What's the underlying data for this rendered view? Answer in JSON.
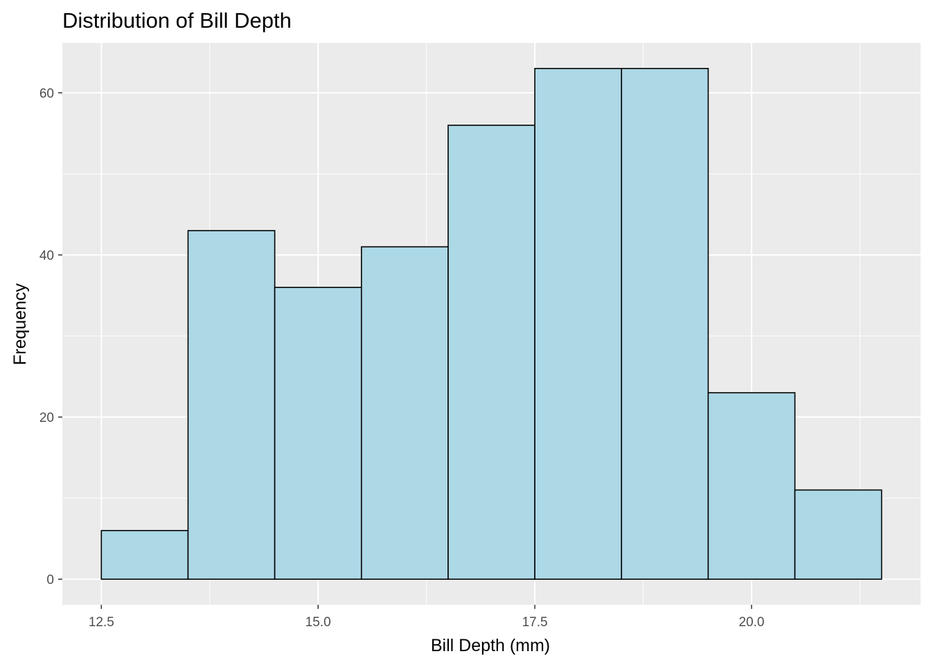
{
  "chart_data": {
    "type": "bar",
    "title": "Distribution of Bill Depth",
    "xlabel": "Bill Depth (mm)",
    "ylabel": "Frequency",
    "bins": [
      {
        "start": 12.5,
        "end": 13.5,
        "count": 6
      },
      {
        "start": 13.5,
        "end": 14.5,
        "count": 43
      },
      {
        "start": 14.5,
        "end": 15.5,
        "count": 36
      },
      {
        "start": 15.5,
        "end": 16.5,
        "count": 41
      },
      {
        "start": 16.5,
        "end": 17.5,
        "count": 56
      },
      {
        "start": 17.5,
        "end": 18.5,
        "count": 63
      },
      {
        "start": 18.5,
        "end": 19.5,
        "count": 63
      },
      {
        "start": 19.5,
        "end": 20.5,
        "count": 23
      },
      {
        "start": 20.5,
        "end": 21.5,
        "count": 11
      }
    ],
    "xlim": [
      12.05,
      21.95
    ],
    "ylim": [
      -3.15,
      66.15
    ],
    "x_ticks": [
      {
        "value": 12.5,
        "label": "12.5"
      },
      {
        "value": 15.0,
        "label": "15.0"
      },
      {
        "value": 17.5,
        "label": "17.5"
      },
      {
        "value": 20.0,
        "label": "20.0"
      }
    ],
    "y_ticks": [
      {
        "value": 0,
        "label": "0"
      },
      {
        "value": 20,
        "label": "20"
      },
      {
        "value": 40,
        "label": "40"
      },
      {
        "value": 60,
        "label": "60"
      }
    ],
    "x_minor_ticks": [
      13.75,
      16.25,
      18.75,
      21.25
    ],
    "y_minor_ticks": [
      10,
      30,
      50
    ],
    "grid": true,
    "colors": {
      "panel_background": "#ebebeb",
      "grid_line": "#ffffff",
      "bar_fill": "#add8e6",
      "bar_outline": "#000000",
      "tick_mark": "#333333"
    }
  }
}
